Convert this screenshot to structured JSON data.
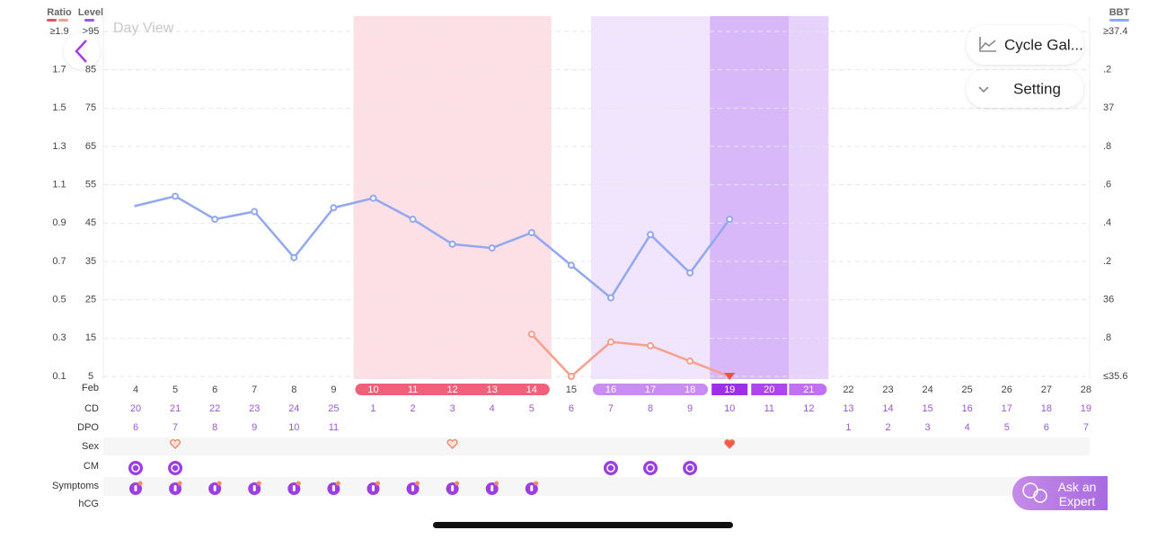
{
  "header": {
    "title": "Day View",
    "buttons": [
      "Cycle Gal...",
      "Setting"
    ],
    "ask": "Ask an Expert"
  },
  "chart_data": {
    "type": "line",
    "x_label": "Feb",
    "categories": [
      4,
      5,
      6,
      7,
      8,
      9,
      10,
      11,
      12,
      13,
      14,
      15,
      16,
      17,
      18,
      19,
      20,
      21,
      22,
      23,
      24,
      25,
      26,
      27,
      28
    ],
    "axes": [
      {
        "title": "Ratio",
        "lim": [
          0.1,
          1.9
        ],
        "ticks": [
          {
            "value": 1.9,
            "label": "≥1.9"
          },
          1.7,
          1.5,
          1.3,
          1.1,
          0.9,
          0.7,
          0.5,
          0.3,
          0.1
        ]
      },
      {
        "title": "Level",
        "lim": [
          5,
          95
        ],
        "ticks": [
          {
            "value": 95,
            "label": ">95"
          },
          85,
          75,
          65,
          55,
          45,
          35,
          25,
          15,
          5
        ]
      },
      {
        "title": "BBT",
        "lim": [
          35.6,
          37.4
        ],
        "ticks": [
          {
            "value": 37.4,
            "label": "≥37.4"
          },
          {
            "value": 37.2,
            "label": ".2"
          },
          37,
          {
            "value": 36.8,
            "label": ".8"
          },
          {
            "value": 36.6,
            "label": ".6"
          },
          {
            "value": 36.4,
            "label": ".4"
          },
          {
            "value": 36.2,
            "label": ".2"
          },
          36,
          {
            "value": 35.8,
            "label": ".8"
          },
          {
            "value": 35.6,
            "label": "≤35.6"
          }
        ]
      }
    ],
    "series": [
      {
        "axis": 0,
        "color": "#f4a08c",
        "values": [
          null,
          null,
          null,
          null,
          null,
          null,
          null,
          null,
          null,
          null,
          0.32,
          0.1,
          0.28,
          0.26,
          0.18,
          0.1,
          null,
          null,
          null,
          null,
          null,
          null,
          null,
          null,
          null
        ]
      },
      {
        "axis": 2,
        "color": "#91a7ef",
        "values": [
          36.49,
          36.54,
          36.42,
          36.46,
          36.22,
          36.48,
          36.53,
          36.42,
          36.29,
          36.27,
          36.35,
          36.18,
          36.01,
          36.34,
          36.14,
          36.42,
          null,
          null,
          null,
          null,
          null,
          null,
          null,
          null,
          null
        ]
      }
    ],
    "rows": {
      "labels": [
        "CD",
        "DPO",
        "Sex",
        "CM",
        "Symptoms",
        "hCG"
      ],
      "cd": [
        20,
        21,
        22,
        23,
        24,
        25,
        1,
        2,
        3,
        4,
        5,
        6,
        7,
        8,
        9,
        10,
        11,
        12,
        13,
        14,
        15,
        16,
        17,
        18,
        19
      ],
      "dpo": [
        6,
        7,
        8,
        9,
        10,
        11,
        null,
        null,
        null,
        null,
        null,
        null,
        null,
        null,
        null,
        null,
        null,
        null,
        1,
        2,
        3,
        4,
        5,
        6,
        7
      ]
    }
  }
}
